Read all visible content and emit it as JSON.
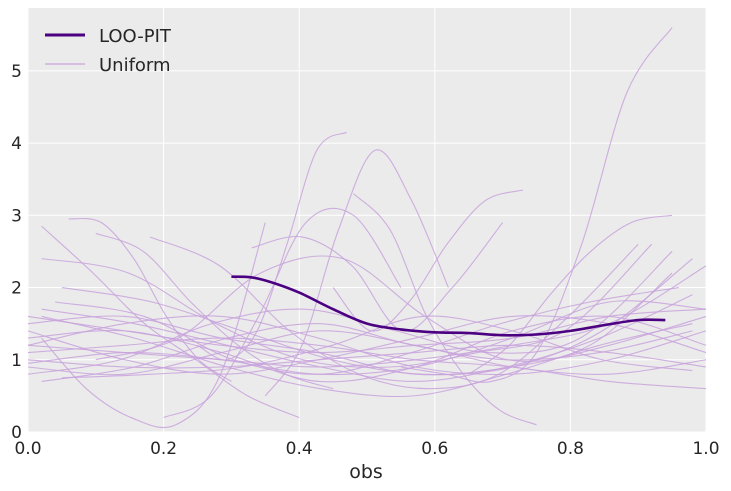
{
  "chart_data": {
    "type": "line",
    "title": "",
    "xlabel": "obs",
    "ylabel": "",
    "xlim": [
      0.0,
      1.0
    ],
    "ylim": [
      0,
      5.87
    ],
    "xticks": [
      "0.0",
      "0.2",
      "0.4",
      "0.6",
      "0.8",
      "1.0"
    ],
    "yticks": [
      "0",
      "1",
      "2",
      "3",
      "4",
      "5"
    ],
    "grid": true,
    "legend": {
      "placement": "top-left",
      "entries": [
        "LOO-PIT",
        "Uniform"
      ]
    },
    "colors": {
      "loo_pit": "#4b0082",
      "uniform": "#c8a2dc",
      "background": "#ebebeb",
      "grid": "#ffffff"
    },
    "series": [
      {
        "name": "LOO-PIT",
        "x": [
          0.3,
          0.33,
          0.36,
          0.4,
          0.45,
          0.5,
          0.55,
          0.6,
          0.65,
          0.7,
          0.75,
          0.8,
          0.85,
          0.9,
          0.94
        ],
        "y": [
          2.15,
          2.14,
          2.07,
          1.93,
          1.7,
          1.5,
          1.42,
          1.38,
          1.37,
          1.34,
          1.35,
          1.4,
          1.48,
          1.55,
          1.55
        ]
      }
    ],
    "uniform_samples": [
      {
        "x0": 0.55,
        "x1": 0.95,
        "y": [
          0.9,
          0.8,
          0.7,
          1.1,
          2.6,
          4.7,
          5.6
        ]
      },
      {
        "x0": 0.25,
        "x1": 0.47,
        "y": [
          1.2,
          1.0,
          1.4,
          2.6,
          3.9,
          4.15
        ]
      },
      {
        "x0": 0.35,
        "x1": 0.62,
        "y": [
          0.5,
          1.2,
          2.8,
          3.9,
          3.2,
          2.0
        ]
      },
      {
        "x0": 0.02,
        "x1": 0.4,
        "y": [
          2.85,
          2.2,
          1.5,
          1.0,
          0.5,
          0.2
        ]
      },
      {
        "x0": 0.06,
        "x1": 0.3,
        "y": [
          2.95,
          2.9,
          2.4,
          1.6,
          1.0,
          0.7
        ]
      },
      {
        "x0": 0.1,
        "x1": 0.45,
        "y": [
          2.75,
          2.5,
          1.8,
          1.2,
          0.8,
          0.6
        ]
      },
      {
        "x0": 0.02,
        "x1": 0.35,
        "y": [
          1.3,
          0.6,
          0.2,
          0.1,
          0.8,
          2.9
        ]
      },
      {
        "x0": 0.45,
        "x1": 0.73,
        "y": [
          2.0,
          1.4,
          1.8,
          2.6,
          3.2,
          3.35
        ]
      },
      {
        "x0": 0.65,
        "x1": 0.95,
        "y": [
          0.8,
          1.2,
          1.9,
          2.5,
          2.9,
          3.0
        ]
      },
      {
        "x0": 0.33,
        "x1": 0.7,
        "y": [
          2.55,
          2.7,
          2.3,
          1.4,
          2.0,
          2.9
        ]
      },
      {
        "x0": 0.48,
        "x1": 0.75,
        "y": [
          3.3,
          2.8,
          1.6,
          0.8,
          0.3,
          0.1
        ]
      },
      {
        "x0": 0.2,
        "x1": 0.55,
        "y": [
          0.2,
          0.5,
          1.6,
          2.9,
          3.0,
          2.0
        ]
      },
      {
        "x0": 0.0,
        "x1": 1.0,
        "y": [
          1.2,
          1.1,
          1.0,
          0.9,
          1.0,
          1.2,
          1.5,
          2.3
        ]
      },
      {
        "x0": 0.0,
        "x1": 1.0,
        "y": [
          1.5,
          1.6,
          1.3,
          1.1,
          0.8,
          0.9,
          1.2,
          1.6
        ]
      },
      {
        "x0": 0.0,
        "x1": 1.0,
        "y": [
          0.9,
          0.8,
          1.1,
          1.4,
          1.2,
          0.9,
          0.8,
          1.0
        ]
      },
      {
        "x0": 0.02,
        "x1": 0.98,
        "y": [
          1.7,
          1.5,
          1.2,
          0.9,
          0.7,
          0.9,
          1.3,
          1.9
        ]
      },
      {
        "x0": 0.02,
        "x1": 0.98,
        "y": [
          0.7,
          0.9,
          1.3,
          1.5,
          1.2,
          1.0,
          1.1,
          1.4
        ]
      },
      {
        "x0": 0.0,
        "x1": 1.0,
        "y": [
          1.3,
          1.4,
          1.1,
          0.7,
          0.9,
          1.4,
          1.6,
          1.2
        ]
      },
      {
        "x0": 0.05,
        "x1": 0.98,
        "y": [
          2.0,
          1.8,
          1.4,
          1.0,
          0.8,
          0.9,
          1.4,
          2.4
        ]
      },
      {
        "x0": 0.0,
        "x1": 1.0,
        "y": [
          1.1,
          1.2,
          1.3,
          1.2,
          1.0,
          0.9,
          0.7,
          0.6
        ]
      },
      {
        "x0": 0.02,
        "x1": 0.98,
        "y": [
          1.6,
          1.3,
          0.9,
          0.6,
          0.5,
          0.8,
          1.2,
          1.5
        ]
      },
      {
        "x0": 0.0,
        "x1": 0.95,
        "y": [
          0.8,
          1.0,
          1.5,
          1.7,
          1.4,
          1.1,
          1.3,
          2.5
        ]
      },
      {
        "x0": 0.04,
        "x1": 0.96,
        "y": [
          1.8,
          1.6,
          1.0,
          0.8,
          1.1,
          1.5,
          1.8,
          2.0
        ]
      },
      {
        "x0": 0.0,
        "x1": 1.0,
        "y": [
          1.0,
          0.9,
          0.9,
          1.0,
          1.1,
          1.2,
          1.1,
          0.9
        ]
      },
      {
        "x0": 0.02,
        "x1": 0.92,
        "y": [
          2.4,
          2.2,
          1.5,
          1.0,
          0.9,
          1.1,
          1.4,
          2.6
        ]
      },
      {
        "x0": 0.0,
        "x1": 1.0,
        "y": [
          1.4,
          1.0,
          0.8,
          1.0,
          1.3,
          1.6,
          1.5,
          1.1
        ]
      },
      {
        "x0": 0.05,
        "x1": 0.98,
        "y": [
          0.75,
          0.8,
          0.9,
          1.2,
          1.6,
          1.4,
          1.0,
          0.85
        ]
      },
      {
        "x0": 0.0,
        "x1": 1.0,
        "y": [
          1.2,
          1.5,
          1.6,
          1.3,
          0.9,
          0.8,
          1.0,
          1.4
        ]
      },
      {
        "x0": 0.1,
        "x1": 0.95,
        "y": [
          1.0,
          1.3,
          2.2,
          2.4,
          1.6,
          1.0,
          1.2,
          2.2
        ]
      },
      {
        "x0": 0.0,
        "x1": 1.0,
        "y": [
          1.6,
          1.4,
          1.2,
          1.1,
          1.2,
          1.3,
          1.6,
          1.7
        ]
      },
      {
        "x0": 0.18,
        "x1": 0.9,
        "y": [
          2.7,
          2.3,
          1.4,
          0.8,
          0.6,
          0.8,
          1.6,
          2.6
        ]
      },
      {
        "x0": 0.0,
        "x1": 1.0,
        "y": [
          0.95,
          1.1,
          1.0,
          0.8,
          0.9,
          1.3,
          1.8,
          1.7
        ]
      }
    ]
  }
}
